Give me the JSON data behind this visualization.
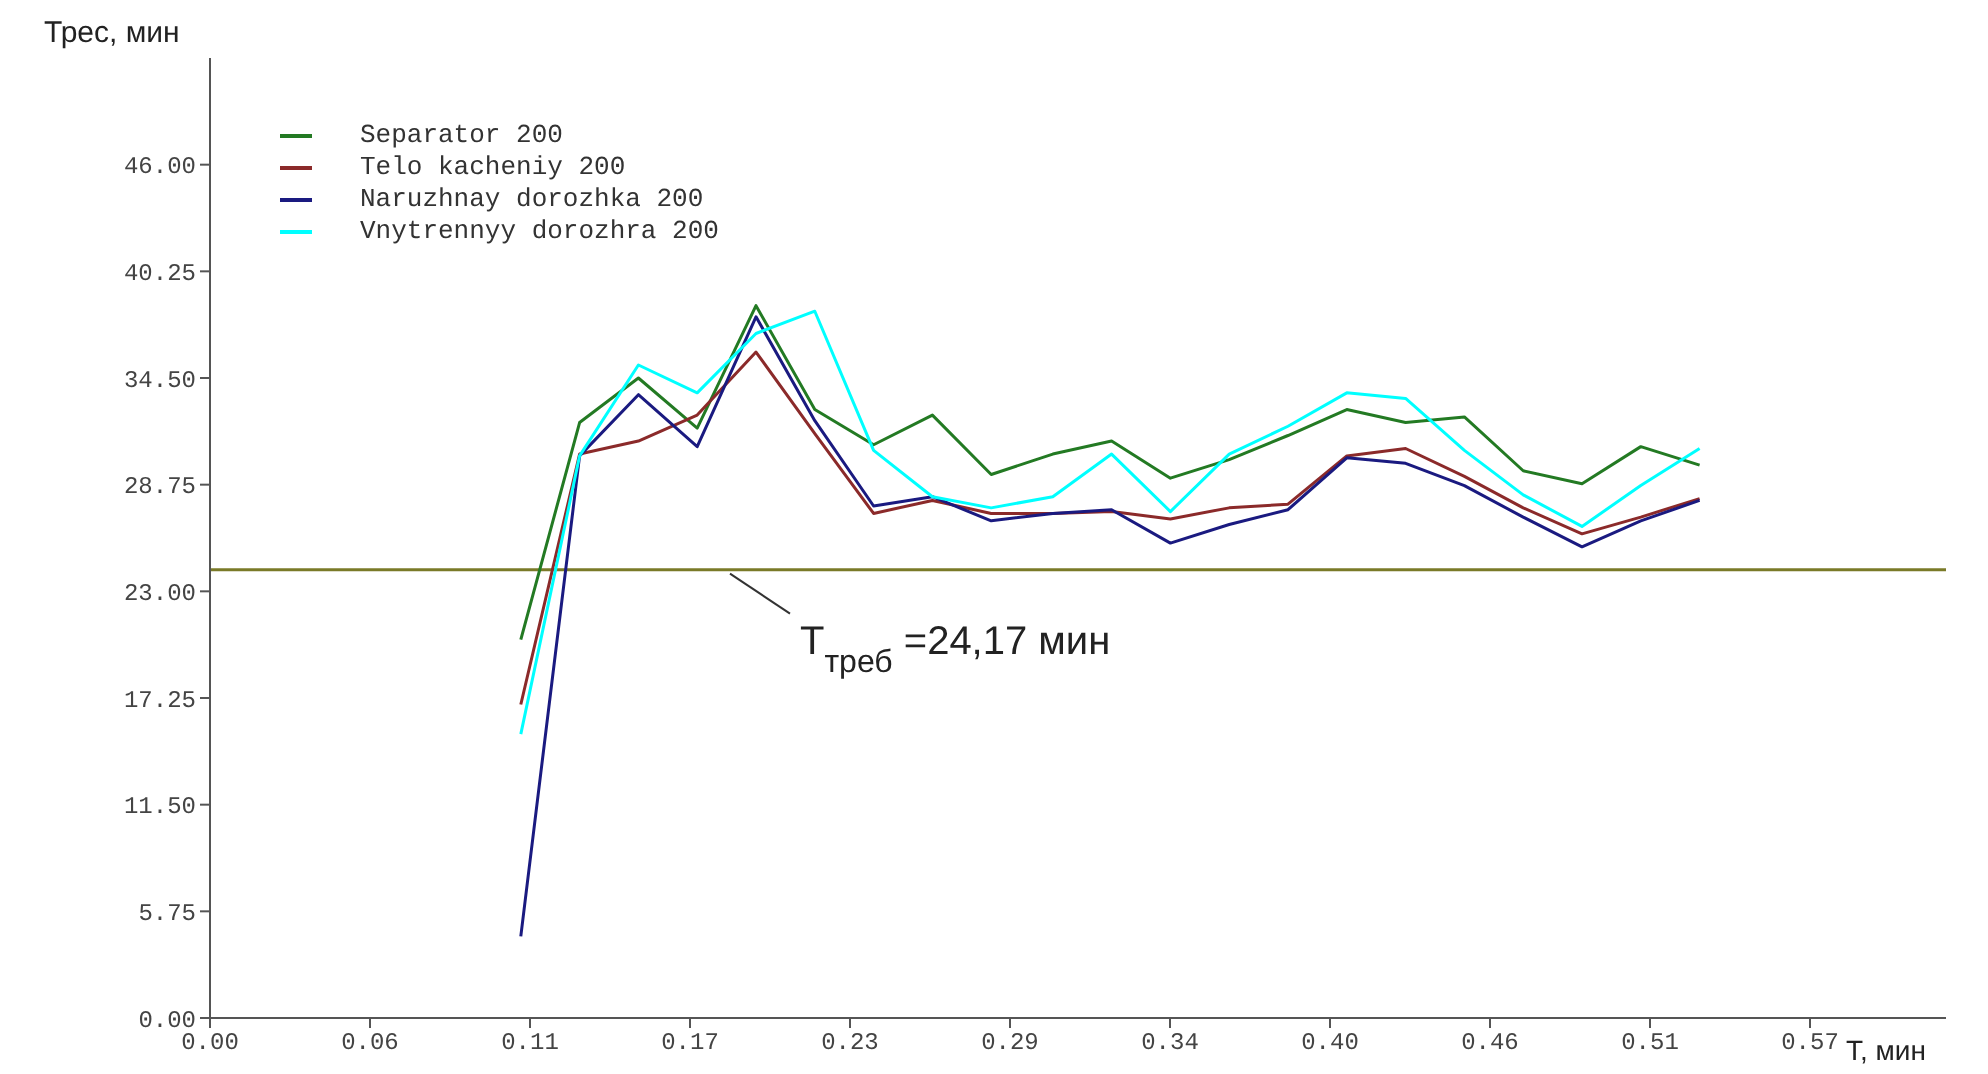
{
  "chart_data": {
    "type": "line",
    "xlabel": "T, мин",
    "ylabel": "Трес, мин",
    "x": [
      0.111,
      0.132,
      0.153,
      0.174,
      0.195,
      0.216,
      0.237,
      0.258,
      0.279,
      0.301,
      0.322,
      0.343,
      0.364,
      0.385,
      0.406,
      0.427,
      0.448,
      0.469,
      0.49,
      0.511,
      0.532
    ],
    "series": [
      {
        "name": "Separator 200",
        "color": "#237a23",
        "values": [
          20.4,
          32.1,
          34.5,
          31.8,
          38.4,
          32.8,
          30.9,
          32.5,
          29.3,
          30.4,
          31.1,
          29.1,
          30.1,
          31.4,
          32.8,
          32.1,
          32.4,
          29.5,
          28.8,
          30.8,
          29.8
        ]
      },
      {
        "name": "Telo kacheniy 200",
        "color": "#8b2a2a",
        "values": [
          16.9,
          30.4,
          31.1,
          32.5,
          35.9,
          31.5,
          27.2,
          27.9,
          27.2,
          27.2,
          27.3,
          26.9,
          27.5,
          27.7,
          30.3,
          30.7,
          29.2,
          27.5,
          26.1,
          27.0,
          28.0
        ]
      },
      {
        "name": "Naruzhnay dorozhka 200",
        "color": "#1a1a80",
        "values": [
          4.4,
          30.3,
          33.6,
          30.8,
          37.8,
          32.2,
          27.6,
          28.1,
          26.8,
          27.2,
          27.4,
          25.6,
          26.6,
          27.4,
          30.2,
          29.9,
          28.7,
          27.0,
          25.4,
          26.8,
          27.9
        ]
      },
      {
        "name": "Vnytrennyy dorozhra 200",
        "color": "#00ffff",
        "values": [
          15.3,
          30.3,
          35.2,
          33.7,
          36.9,
          38.1,
          30.6,
          28.1,
          27.5,
          28.1,
          30.4,
          27.3,
          30.4,
          31.9,
          33.7,
          33.4,
          30.6,
          28.2,
          26.5,
          28.7,
          30.7
        ]
      }
    ],
    "xlim": [
      0,
      0.62
    ],
    "xticks": [
      {
        "value": 0,
        "label": "0.00"
      },
      {
        "value": 0.05714,
        "label": "0.06"
      },
      {
        "value": 0.11429,
        "label": "0.11"
      },
      {
        "value": 0.17143,
        "label": "0.17"
      },
      {
        "value": 0.22857,
        "label": "0.23"
      },
      {
        "value": 0.28571,
        "label": "0.29"
      },
      {
        "value": 0.34286,
        "label": "0.34"
      },
      {
        "value": 0.4,
        "label": "0.40"
      },
      {
        "value": 0.45714,
        "label": "0.46"
      },
      {
        "value": 0.51429,
        "label": "0.51"
      },
      {
        "value": 0.57143,
        "label": "0.57"
      }
    ],
    "ylim": [
      0,
      51.75
    ],
    "yticks": [
      {
        "value": 0,
        "label": "0.00"
      },
      {
        "value": 5.75,
        "label": "5.75"
      },
      {
        "value": 11.5,
        "label": "11.50"
      },
      {
        "value": 17.25,
        "label": "17.25"
      },
      {
        "value": 23,
        "label": "23.00"
      },
      {
        "value": 28.75,
        "label": "28.75"
      },
      {
        "value": 34.5,
        "label": "34.50"
      },
      {
        "value": 40.25,
        "label": "40.25"
      },
      {
        "value": 46,
        "label": "46.00"
      }
    ],
    "ref_lines": [
      {
        "axis": "y",
        "value": 24.17,
        "label": "T$_{треб}$ =24,17 мин",
        "color": "#7a7a28"
      }
    ],
    "grid": false,
    "legend": "top left",
    "marker": "none",
    "line_style": "solid"
  }
}
